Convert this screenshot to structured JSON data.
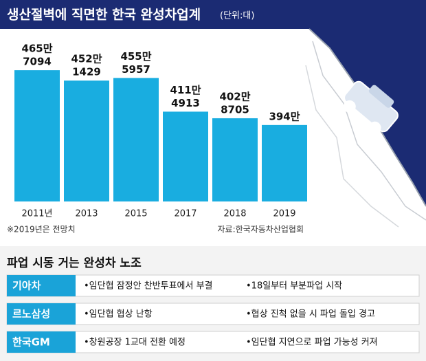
{
  "chart_data": {
    "type": "bar",
    "title": "생산절벽에 직면한 한국 완성차업계",
    "unit": "(단위:대)",
    "categories": [
      "2011년",
      "2013",
      "2015",
      "2017",
      "2018",
      "2019"
    ],
    "values": [
      4657094,
      4521429,
      4555957,
      4114913,
      4028705,
      3940000
    ],
    "value_labels": [
      [
        "465만",
        "7094"
      ],
      [
        "452만",
        "1429"
      ],
      [
        "455만",
        "5957"
      ],
      [
        "411만",
        "4913"
      ],
      [
        "402만",
        "8705"
      ],
      [
        "394만"
      ]
    ],
    "color": "#19ade0",
    "ylim": [
      2940000,
      5000000
    ],
    "note": "※2019년은 전망치",
    "source": "자료:한국자동차산업협회"
  },
  "table": {
    "title": "파업 시동 거는 완성차 노조",
    "rows": [
      [
        "기아차",
        "•임단협 잠정안 찬반투표에서 부결",
        "•18일부터 부분파업 시작"
      ],
      [
        "르노삼성",
        "•임단협 협상 난항",
        "•협상 진척 없을 시 파업 돌입 경고"
      ],
      [
        "한국GM",
        "•창원공장 1교대 전환 예정",
        "•임단협 지연으로 파업 가능성 커져"
      ]
    ]
  }
}
